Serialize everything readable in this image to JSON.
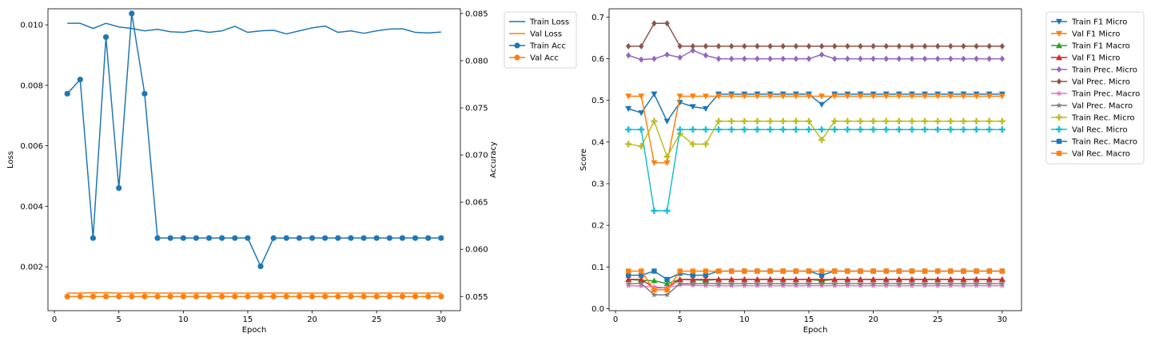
{
  "chart_data": [
    {
      "type": "line",
      "xlabel": "Epoch",
      "ylabel": "Loss",
      "y2label": "Accuracy",
      "xlim": [
        -0.5,
        31.5
      ],
      "ylim": [
        0.00055,
        0.01053
      ],
      "y2lim": [
        0.0535,
        0.0855
      ],
      "x_ticks": [
        0,
        5,
        10,
        15,
        20,
        25,
        30
      ],
      "x_tick_labels": [
        "0",
        "5",
        "10",
        "15",
        "20",
        "25",
        "30"
      ],
      "y_ticks": [
        0.002,
        0.004,
        0.006,
        0.008,
        0.01
      ],
      "y_tick_labels": [
        "0.002",
        "0.004",
        "0.006",
        "0.008",
        "0.010"
      ],
      "y2_ticks": [
        0.055,
        0.06,
        0.065,
        0.07,
        0.075,
        0.08,
        0.085
      ],
      "y2_tick_labels": [
        "0.055",
        "0.060",
        "0.065",
        "0.070",
        "0.075",
        "0.080",
        "0.085"
      ],
      "grid": false,
      "legend_position": "outside-right-top",
      "x": [
        1,
        2,
        3,
        4,
        5,
        6,
        7,
        8,
        9,
        10,
        11,
        12,
        13,
        14,
        15,
        16,
        17,
        18,
        19,
        20,
        21,
        22,
        23,
        24,
        25,
        26,
        27,
        28,
        29,
        30
      ],
      "series": [
        {
          "name": "Train Loss",
          "axis": "left",
          "color": "#1f77b4",
          "marker": "none",
          "values": [
            0.01005,
            0.01005,
            0.00988,
            0.01005,
            0.00993,
            0.00988,
            0.0098,
            0.00985,
            0.00977,
            0.00975,
            0.00982,
            0.00975,
            0.0098,
            0.00995,
            0.00975,
            0.0098,
            0.00982,
            0.0097,
            0.0098,
            0.0099,
            0.00996,
            0.00975,
            0.0098,
            0.00972,
            0.0098,
            0.00986,
            0.00987,
            0.00975,
            0.00973,
            0.00976
          ]
        },
        {
          "name": "Val Loss",
          "axis": "left",
          "color": "#ff7f0e",
          "marker": "none",
          "values": [
            0.00113,
            0.00113,
            0.00114,
            0.00114,
            0.00113,
            0.00113,
            0.00114,
            0.00113,
            0.00113,
            0.00113,
            0.00113,
            0.00113,
            0.00113,
            0.00113,
            0.00113,
            0.00113,
            0.00113,
            0.00113,
            0.00113,
            0.00113,
            0.00113,
            0.00113,
            0.00113,
            0.00113,
            0.00113,
            0.00113,
            0.00113,
            0.00113,
            0.00113,
            0.00113
          ]
        },
        {
          "name": "Train Acc",
          "axis": "right",
          "color": "#1f77b4",
          "marker": "circle",
          "values": [
            0.0765,
            0.078,
            0.0612,
            0.0825,
            0.0665,
            0.085,
            0.0765,
            0.0612,
            0.0612,
            0.0612,
            0.0612,
            0.0612,
            0.0612,
            0.0612,
            0.0612,
            0.0582,
            0.0612,
            0.0612,
            0.0612,
            0.0612,
            0.0612,
            0.0612,
            0.0612,
            0.0612,
            0.0612,
            0.0612,
            0.0612,
            0.0612,
            0.0612,
            0.0612
          ]
        },
        {
          "name": "Val Acc",
          "axis": "right",
          "color": "#ff7f0e",
          "marker": "circle",
          "values": [
            0.055,
            0.055,
            0.055,
            0.055,
            0.055,
            0.055,
            0.055,
            0.055,
            0.055,
            0.055,
            0.055,
            0.055,
            0.055,
            0.055,
            0.055,
            0.055,
            0.055,
            0.055,
            0.055,
            0.055,
            0.055,
            0.055,
            0.055,
            0.055,
            0.055,
            0.055,
            0.055,
            0.055,
            0.055,
            0.055
          ]
        }
      ]
    },
    {
      "type": "line",
      "xlabel": "Epoch",
      "ylabel": "Score",
      "xlim": [
        -0.5,
        31.5
      ],
      "ylim": [
        -0.005,
        0.72
      ],
      "x_ticks": [
        0,
        5,
        10,
        15,
        20,
        25,
        30
      ],
      "x_tick_labels": [
        "0",
        "5",
        "10",
        "15",
        "20",
        "25",
        "30"
      ],
      "y_ticks": [
        0.0,
        0.1,
        0.2,
        0.3,
        0.4,
        0.5,
        0.6,
        0.7
      ],
      "y_tick_labels": [
        "0.0",
        "0.1",
        "0.2",
        "0.3",
        "0.4",
        "0.5",
        "0.6",
        "0.7"
      ],
      "grid": false,
      "legend_position": "outside-right-top",
      "x": [
        1,
        2,
        3,
        4,
        5,
        6,
        7,
        8,
        9,
        10,
        11,
        12,
        13,
        14,
        15,
        16,
        17,
        18,
        19,
        20,
        21,
        22,
        23,
        24,
        25,
        26,
        27,
        28,
        29,
        30
      ],
      "series": [
        {
          "name": "Train F1 Micro",
          "color": "#1f77b4",
          "marker": "triangle-down",
          "values": [
            0.48,
            0.47,
            0.515,
            0.45,
            0.495,
            0.485,
            0.48,
            0.515,
            0.515,
            0.515,
            0.515,
            0.515,
            0.515,
            0.515,
            0.515,
            0.49,
            0.515,
            0.515,
            0.515,
            0.515,
            0.515,
            0.515,
            0.515,
            0.515,
            0.515,
            0.515,
            0.515,
            0.515,
            0.515,
            0.515
          ]
        },
        {
          "name": "Val F1 Micro",
          "color": "#ff7f0e",
          "marker": "triangle-down",
          "values": [
            0.51,
            0.51,
            0.35,
            0.35,
            0.51,
            0.51,
            0.51,
            0.51,
            0.51,
            0.51,
            0.51,
            0.51,
            0.51,
            0.51,
            0.51,
            0.51,
            0.51,
            0.51,
            0.51,
            0.51,
            0.51,
            0.51,
            0.51,
            0.51,
            0.51,
            0.51,
            0.51,
            0.51,
            0.51,
            0.51
          ]
        },
        {
          "name": "Train F1 Macro",
          "color": "#2ca02c",
          "marker": "triangle-up",
          "values": [
            0.07,
            0.068,
            0.067,
            0.06,
            0.07,
            0.069,
            0.068,
            0.07,
            0.07,
            0.07,
            0.07,
            0.07,
            0.07,
            0.07,
            0.07,
            0.067,
            0.07,
            0.07,
            0.07,
            0.07,
            0.07,
            0.07,
            0.07,
            0.07,
            0.07,
            0.07,
            0.07,
            0.07,
            0.07,
            0.07
          ]
        },
        {
          "name": "Val F1 Micro",
          "color": "#d62728",
          "marker": "triangle-up",
          "values": [
            0.07,
            0.07,
            0.05,
            0.05,
            0.07,
            0.07,
            0.07,
            0.07,
            0.07,
            0.07,
            0.07,
            0.07,
            0.07,
            0.07,
            0.07,
            0.07,
            0.07,
            0.07,
            0.07,
            0.07,
            0.07,
            0.07,
            0.07,
            0.07,
            0.07,
            0.07,
            0.07,
            0.07,
            0.07,
            0.07
          ]
        },
        {
          "name": "Train Prec. Micro",
          "color": "#9467bd",
          "marker": "diamond",
          "values": [
            0.608,
            0.598,
            0.6,
            0.61,
            0.603,
            0.62,
            0.608,
            0.6,
            0.6,
            0.6,
            0.6,
            0.6,
            0.6,
            0.6,
            0.6,
            0.61,
            0.6,
            0.6,
            0.6,
            0.6,
            0.6,
            0.6,
            0.6,
            0.6,
            0.6,
            0.6,
            0.6,
            0.6,
            0.6,
            0.6
          ]
        },
        {
          "name": "Val Prec. Micro",
          "color": "#8c564b",
          "marker": "diamond",
          "values": [
            0.63,
            0.63,
            0.685,
            0.685,
            0.63,
            0.63,
            0.63,
            0.63,
            0.63,
            0.63,
            0.63,
            0.63,
            0.63,
            0.63,
            0.63,
            0.63,
            0.63,
            0.63,
            0.63,
            0.63,
            0.63,
            0.63,
            0.63,
            0.63,
            0.63,
            0.63,
            0.63,
            0.63,
            0.63,
            0.63
          ]
        },
        {
          "name": "Train Prec. Macro",
          "color": "#e377c2",
          "marker": "star",
          "values": [
            0.055,
            0.054,
            0.052,
            0.05,
            0.057,
            0.056,
            0.055,
            0.055,
            0.055,
            0.055,
            0.055,
            0.055,
            0.055,
            0.055,
            0.055,
            0.055,
            0.055,
            0.055,
            0.055,
            0.055,
            0.055,
            0.055,
            0.055,
            0.055,
            0.055,
            0.055,
            0.055,
            0.055,
            0.055,
            0.055
          ]
        },
        {
          "name": "Val Prec. Macro",
          "color": "#7f7f7f",
          "marker": "star",
          "values": [
            0.06,
            0.06,
            0.033,
            0.033,
            0.06,
            0.06,
            0.06,
            0.06,
            0.06,
            0.06,
            0.06,
            0.06,
            0.06,
            0.06,
            0.06,
            0.06,
            0.06,
            0.06,
            0.06,
            0.06,
            0.06,
            0.06,
            0.06,
            0.06,
            0.06,
            0.06,
            0.06,
            0.06,
            0.06,
            0.06
          ]
        },
        {
          "name": "Train Rec. Micro",
          "color": "#bcbd22",
          "marker": "plus",
          "values": [
            0.395,
            0.39,
            0.45,
            0.365,
            0.42,
            0.395,
            0.395,
            0.45,
            0.45,
            0.45,
            0.45,
            0.45,
            0.45,
            0.45,
            0.45,
            0.405,
            0.45,
            0.45,
            0.45,
            0.45,
            0.45,
            0.45,
            0.45,
            0.45,
            0.45,
            0.45,
            0.45,
            0.45,
            0.45,
            0.45
          ]
        },
        {
          "name": "Val Rec. Micro",
          "color": "#17becf",
          "marker": "plus",
          "values": [
            0.43,
            0.43,
            0.235,
            0.235,
            0.43,
            0.43,
            0.43,
            0.43,
            0.43,
            0.43,
            0.43,
            0.43,
            0.43,
            0.43,
            0.43,
            0.43,
            0.43,
            0.43,
            0.43,
            0.43,
            0.43,
            0.43,
            0.43,
            0.43,
            0.43,
            0.43,
            0.43,
            0.43,
            0.43,
            0.43
          ]
        },
        {
          "name": "Train Rec. Macro",
          "color": "#1f77b4",
          "marker": "square",
          "values": [
            0.08,
            0.08,
            0.09,
            0.07,
            0.085,
            0.08,
            0.08,
            0.09,
            0.09,
            0.09,
            0.09,
            0.09,
            0.09,
            0.09,
            0.09,
            0.08,
            0.09,
            0.09,
            0.09,
            0.09,
            0.09,
            0.09,
            0.09,
            0.09,
            0.09,
            0.09,
            0.09,
            0.09,
            0.09,
            0.09
          ]
        },
        {
          "name": "Val Rec. Macro",
          "color": "#ff7f0e",
          "marker": "square",
          "values": [
            0.09,
            0.09,
            0.045,
            0.045,
            0.09,
            0.09,
            0.09,
            0.09,
            0.09,
            0.09,
            0.09,
            0.09,
            0.09,
            0.09,
            0.09,
            0.09,
            0.09,
            0.09,
            0.09,
            0.09,
            0.09,
            0.09,
            0.09,
            0.09,
            0.09,
            0.09,
            0.09,
            0.09,
            0.09,
            0.09
          ]
        }
      ]
    }
  ]
}
